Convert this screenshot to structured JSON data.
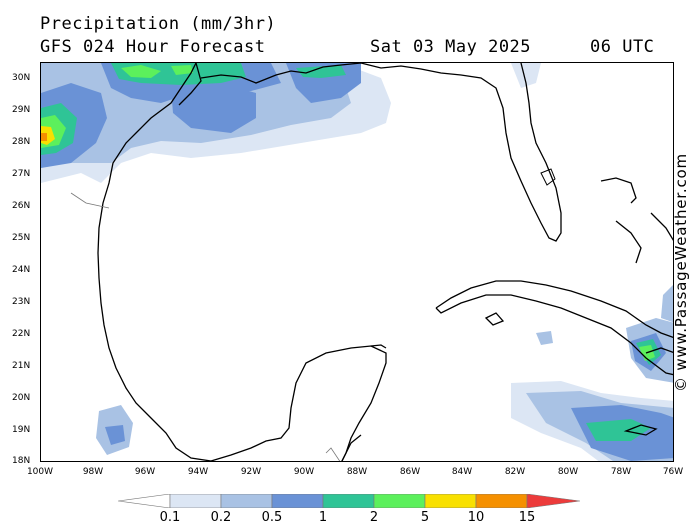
{
  "header": {
    "title": "Precipitation (mm/3hr)",
    "model": "GFS 024 Hour Forecast",
    "date": "Sat 03 May 2025",
    "time": "06 UTC"
  },
  "credit": "© www.PassageWeather.com",
  "axes": {
    "lat_labels": [
      "30N",
      "29N",
      "28N",
      "27N",
      "26N",
      "25N",
      "24N",
      "23N",
      "22N",
      "21N",
      "20N",
      "19N",
      "18N"
    ],
    "lon_labels": [
      "100W",
      "98W",
      "96W",
      "94W",
      "92W",
      "90W",
      "88W",
      "86W",
      "84W",
      "82W",
      "80W",
      "78W",
      "76W"
    ]
  },
  "colorbar": {
    "labels": [
      "0.1",
      "0.2",
      "0.5",
      "1",
      "2",
      "5",
      "10",
      "15"
    ],
    "colors": [
      "#ffffff",
      "#dce6f4",
      "#a9c2e4",
      "#6a92d6",
      "#2fc496",
      "#5cf05c",
      "#f8e000",
      "#f59000",
      "#ec3b3b"
    ]
  },
  "map": {
    "region": "Gulf of Mexico",
    "precip_colors": {
      "light": "#dce6f4",
      "pale": "#a9c2e4",
      "mid": "#6a92d6",
      "teal": "#2fc496",
      "green": "#5cf05c",
      "yellow": "#f8e000",
      "orange": "#f59000"
    }
  }
}
